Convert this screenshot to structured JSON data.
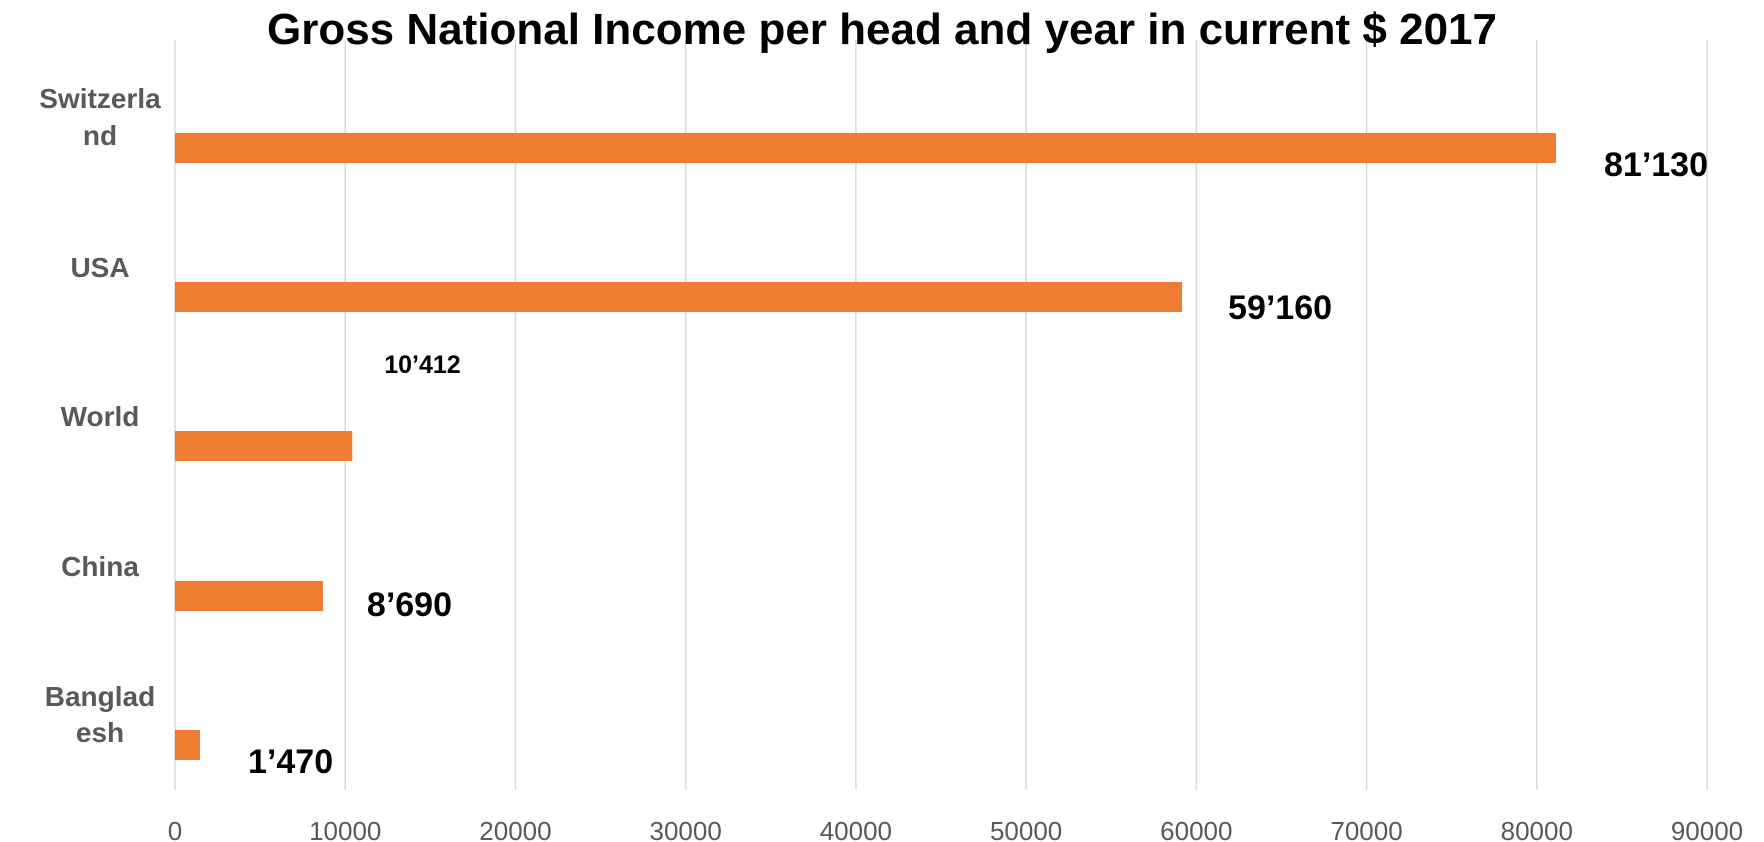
{
  "chart_data": {
    "type": "bar",
    "orientation": "horizontal",
    "title": "Gross National Income per head and year in current $ 2017",
    "categories": [
      [
        "Switzerla",
        "nd"
      ],
      [
        "USA"
      ],
      [
        "World"
      ],
      [
        "China"
      ],
      [
        "Banglad",
        "esh"
      ]
    ],
    "values": [
      81130,
      59160,
      10412,
      8690,
      1470
    ],
    "data_labels": [
      "81’130",
      "59’160",
      "10’412",
      "8’690",
      "1’470"
    ],
    "xlim": [
      0,
      90000
    ],
    "x_ticks": [
      "0",
      "10000",
      "20000",
      "30000",
      "40000",
      "50000",
      "60000",
      "70000",
      "80000",
      "90000"
    ],
    "grid": true,
    "legend": "none",
    "bar_color": "#ED7D31",
    "grid_color": "#D9D9D9"
  }
}
